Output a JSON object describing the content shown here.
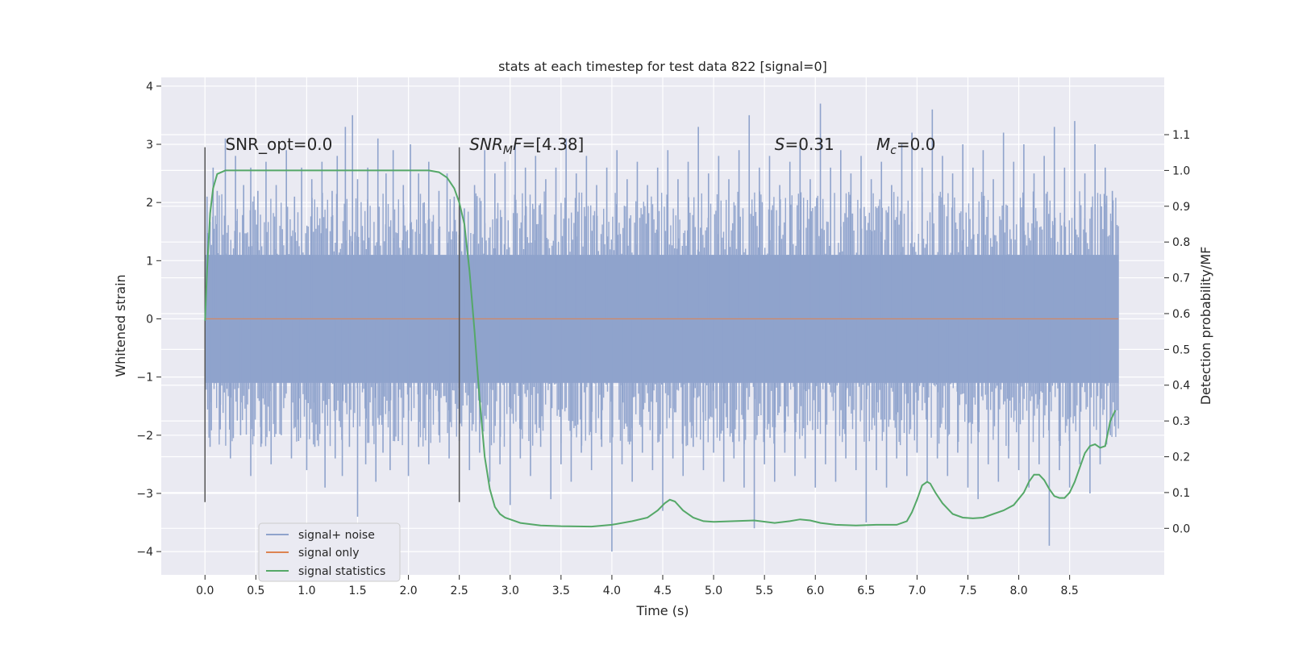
{
  "chart_data": {
    "type": "line",
    "title": "stats at each timestep for test data 822 [signal=0]",
    "xlabel": "Time (s)",
    "ylabel": "Whitened strain",
    "y2label": "Detection probability/MF",
    "xlim": [
      -0.43,
      9.43
    ],
    "ylim": [
      -4.4,
      4.15
    ],
    "y2lim": [
      -0.13,
      1.26
    ],
    "x_ticks": [
      0.0,
      0.5,
      1.0,
      1.5,
      2.0,
      2.5,
      3.0,
      3.5,
      4.0,
      4.5,
      5.0,
      5.5,
      6.0,
      6.5,
      7.0,
      7.5,
      8.0,
      8.5
    ],
    "x_tick_labels": [
      "0.0",
      "0.5",
      "1.0",
      "1.5",
      "2.0",
      "2.5",
      "3.0",
      "3.5",
      "4.0",
      "4.5",
      "5.0",
      "5.5",
      "6.0",
      "6.5",
      "7.0",
      "7.5",
      "8.0",
      "8.5"
    ],
    "y_ticks": [
      -4,
      -3,
      -2,
      -1,
      0,
      1,
      2,
      3,
      4
    ],
    "y_tick_labels": [
      "−4",
      "−3",
      "−2",
      "−1",
      "0",
      "1",
      "2",
      "3",
      "4"
    ],
    "y2_ticks": [
      0.0,
      0.1,
      0.2,
      0.3,
      0.4,
      0.5,
      0.6,
      0.7,
      0.8,
      0.9,
      1.0,
      1.1
    ],
    "y2_tick_labels": [
      "0.0",
      "0.1",
      "0.2",
      "0.3",
      "0.4",
      "0.5",
      "0.6",
      "0.7",
      "0.8",
      "0.9",
      "1.0",
      "1.1"
    ],
    "grid": true,
    "legend_position": "lower-left",
    "vertical_markers": [
      {
        "x": 0.0,
        "y_range": [
          -3.15,
          2.95
        ]
      },
      {
        "x": 2.5,
        "y_range": [
          -3.15,
          2.95
        ]
      }
    ],
    "annotations": [
      {
        "key": "snr_opt",
        "text": "SNR_opt=0.0",
        "x": 0.2,
        "y": 3.0
      },
      {
        "key": "snr_mf",
        "base": "SNR",
        "sub": "M",
        "rest": "F=[4.38]",
        "x": 2.6,
        "y": 3.0
      },
      {
        "key": "s",
        "base": "S",
        "sub": "",
        "rest": "=0.31",
        "x": 5.6,
        "y": 3.0
      },
      {
        "key": "mc",
        "base": "M",
        "sub": "c",
        "rest": "=0.0",
        "x": 6.6,
        "y": 3.0
      }
    ],
    "series": [
      {
        "name": "signal+ noise",
        "color": "#8fa3cc",
        "x_range": [
          0.0,
          8.98
        ],
        "spikes_up": [
          [
            0.02,
            2.1
          ],
          [
            0.08,
            2.6
          ],
          [
            0.12,
            2.2
          ],
          [
            0.2,
            3.1
          ],
          [
            0.3,
            2.8
          ],
          [
            0.38,
            2.3
          ],
          [
            0.45,
            2.6
          ],
          [
            0.52,
            2.2
          ],
          [
            0.6,
            2.7
          ],
          [
            0.7,
            2.3
          ],
          [
            0.8,
            2.9
          ],
          [
            0.88,
            2.1
          ],
          [
            0.95,
            2.6
          ],
          [
            1.05,
            2.4
          ],
          [
            1.15,
            2.7
          ],
          [
            1.25,
            2.2
          ],
          [
            1.3,
            2.8
          ],
          [
            1.38,
            3.3
          ],
          [
            1.45,
            3.5
          ],
          [
            1.5,
            2.4
          ],
          [
            1.6,
            2.6
          ],
          [
            1.7,
            3.1
          ],
          [
            1.78,
            2.5
          ],
          [
            1.85,
            2.9
          ],
          [
            1.95,
            2.3
          ],
          [
            2.02,
            3.0
          ],
          [
            2.1,
            2.5
          ],
          [
            2.2,
            2.7
          ],
          [
            2.3,
            2.2
          ],
          [
            2.38,
            2.5
          ],
          [
            2.45,
            2.1
          ],
          [
            2.55,
            1.9
          ],
          [
            2.65,
            2.3
          ],
          [
            2.75,
            2.9
          ],
          [
            2.85,
            2.5
          ],
          [
            2.95,
            2.7
          ],
          [
            3.05,
            3.0
          ],
          [
            3.15,
            2.6
          ],
          [
            3.25,
            2.8
          ],
          [
            3.35,
            2.4
          ],
          [
            3.45,
            2.6
          ],
          [
            3.55,
            3.1
          ],
          [
            3.65,
            2.5
          ],
          [
            3.75,
            2.8
          ],
          [
            3.85,
            2.3
          ],
          [
            3.95,
            2.6
          ],
          [
            4.05,
            2.9
          ],
          [
            4.15,
            2.4
          ],
          [
            4.25,
            2.7
          ],
          [
            4.35,
            2.3
          ],
          [
            4.45,
            2.6
          ],
          [
            4.55,
            2.9
          ],
          [
            4.65,
            2.4
          ],
          [
            4.75,
            2.7
          ],
          [
            4.85,
            3.3
          ],
          [
            4.95,
            2.5
          ],
          [
            5.05,
            2.8
          ],
          [
            5.15,
            2.4
          ],
          [
            5.25,
            2.9
          ],
          [
            5.35,
            3.5
          ],
          [
            5.45,
            2.6
          ],
          [
            5.55,
            2.8
          ],
          [
            5.65,
            2.3
          ],
          [
            5.75,
            2.7
          ],
          [
            5.85,
            3.0
          ],
          [
            5.95,
            2.4
          ],
          [
            6.05,
            3.7
          ],
          [
            6.15,
            2.6
          ],
          [
            6.25,
            2.9
          ],
          [
            6.35,
            2.5
          ],
          [
            6.45,
            2.8
          ],
          [
            6.55,
            2.4
          ],
          [
            6.65,
            2.7
          ],
          [
            6.75,
            2.3
          ],
          [
            6.85,
            3.0
          ],
          [
            6.95,
            3.2
          ],
          [
            7.05,
            2.6
          ],
          [
            7.15,
            3.6
          ],
          [
            7.25,
            2.8
          ],
          [
            7.35,
            2.5
          ],
          [
            7.45,
            3.0
          ],
          [
            7.55,
            2.6
          ],
          [
            7.65,
            2.9
          ],
          [
            7.75,
            2.4
          ],
          [
            7.85,
            3.2
          ],
          [
            7.95,
            2.7
          ],
          [
            8.05,
            3.0
          ],
          [
            8.15,
            2.5
          ],
          [
            8.25,
            2.8
          ],
          [
            8.35,
            3.3
          ],
          [
            8.45,
            2.6
          ],
          [
            8.55,
            3.4
          ],
          [
            8.65,
            2.5
          ],
          [
            8.75,
            3.0
          ],
          [
            8.85,
            2.6
          ],
          [
            8.92,
            2.2
          ]
        ],
        "spikes_down": [
          [
            0.05,
            -2.2
          ],
          [
            0.15,
            -1.9
          ],
          [
            0.25,
            -2.4
          ],
          [
            0.35,
            -2.0
          ],
          [
            0.45,
            -2.7
          ],
          [
            0.55,
            -2.2
          ],
          [
            0.65,
            -2.5
          ],
          [
            0.75,
            -2.0
          ],
          [
            0.85,
            -2.4
          ],
          [
            0.92,
            -2.1
          ],
          [
            1.0,
            -2.6
          ],
          [
            1.08,
            -2.2
          ],
          [
            1.18,
            -2.9
          ],
          [
            1.28,
            -2.4
          ],
          [
            1.35,
            -2.7
          ],
          [
            1.42,
            -2.2
          ],
          [
            1.5,
            -3.4
          ],
          [
            1.58,
            -2.5
          ],
          [
            1.68,
            -2.8
          ],
          [
            1.75,
            -2.3
          ],
          [
            1.82,
            -2.6
          ],
          [
            1.9,
            -2.1
          ],
          [
            2.0,
            -2.7
          ],
          [
            2.1,
            -2.2
          ],
          [
            2.2,
            -2.5
          ],
          [
            2.3,
            -2.0
          ],
          [
            2.4,
            -2.4
          ],
          [
            2.5,
            -2.1
          ],
          [
            2.6,
            -2.6
          ],
          [
            2.7,
            -2.3
          ],
          [
            2.8,
            -2.8
          ],
          [
            2.9,
            -2.5
          ],
          [
            3.0,
            -3.2
          ],
          [
            3.1,
            -2.4
          ],
          [
            3.2,
            -2.7
          ],
          [
            3.3,
            -2.2
          ],
          [
            3.4,
            -3.1
          ],
          [
            3.5,
            -2.5
          ],
          [
            3.6,
            -2.8
          ],
          [
            3.7,
            -2.3
          ],
          [
            3.8,
            -2.6
          ],
          [
            3.9,
            -2.2
          ],
          [
            4.0,
            -4.0
          ],
          [
            4.1,
            -2.5
          ],
          [
            4.2,
            -2.8
          ],
          [
            4.3,
            -2.3
          ],
          [
            4.4,
            -2.6
          ],
          [
            4.5,
            -3.3
          ],
          [
            4.6,
            -2.4
          ],
          [
            4.7,
            -2.7
          ],
          [
            4.8,
            -2.2
          ],
          [
            4.9,
            -2.6
          ],
          [
            5.0,
            -2.3
          ],
          [
            5.1,
            -2.8
          ],
          [
            5.2,
            -2.4
          ],
          [
            5.3,
            -2.9
          ],
          [
            5.4,
            -3.6
          ],
          [
            5.5,
            -2.5
          ],
          [
            5.6,
            -2.8
          ],
          [
            5.7,
            -2.3
          ],
          [
            5.8,
            -2.7
          ],
          [
            5.9,
            -2.4
          ],
          [
            6.0,
            -2.9
          ],
          [
            6.1,
            -2.5
          ],
          [
            6.2,
            -2.8
          ],
          [
            6.3,
            -2.4
          ],
          [
            6.4,
            -2.6
          ],
          [
            6.5,
            -3.5
          ],
          [
            6.6,
            -2.6
          ],
          [
            6.7,
            -2.9
          ],
          [
            6.8,
            -2.4
          ],
          [
            6.9,
            -2.7
          ],
          [
            7.0,
            -2.3
          ],
          [
            7.1,
            -2.8
          ],
          [
            7.2,
            -2.4
          ],
          [
            7.3,
            -2.7
          ],
          [
            7.4,
            -2.3
          ],
          [
            7.5,
            -2.9
          ],
          [
            7.6,
            -3.1
          ],
          [
            7.7,
            -2.5
          ],
          [
            7.8,
            -2.8
          ],
          [
            7.9,
            -2.4
          ],
          [
            8.0,
            -2.6
          ],
          [
            8.1,
            -2.9
          ],
          [
            8.2,
            -2.5
          ],
          [
            8.3,
            -3.9
          ],
          [
            8.4,
            -2.6
          ],
          [
            8.5,
            -2.9
          ],
          [
            8.6,
            -2.5
          ],
          [
            8.7,
            -3.0
          ],
          [
            8.8,
            -2.5
          ],
          [
            8.9,
            -2.0
          ]
        ]
      },
      {
        "name": "signal only",
        "color": "#dd8452",
        "x": [
          0.0,
          8.98
        ],
        "y": [
          0.0,
          0.0
        ]
      },
      {
        "name": "signal statistics",
        "color": "#55a868",
        "axis": "right",
        "x": [
          0.0,
          0.02,
          0.05,
          0.08,
          0.12,
          0.2,
          0.4,
          1.0,
          2.0,
          2.2,
          2.3,
          2.38,
          2.45,
          2.5,
          2.55,
          2.6,
          2.65,
          2.7,
          2.75,
          2.8,
          2.85,
          2.9,
          2.95,
          3.0,
          3.1,
          3.3,
          3.5,
          3.8,
          4.0,
          4.2,
          4.35,
          4.45,
          4.52,
          4.57,
          4.62,
          4.7,
          4.8,
          4.9,
          5.0,
          5.2,
          5.4,
          5.6,
          5.75,
          5.85,
          5.95,
          6.05,
          6.2,
          6.4,
          6.6,
          6.8,
          6.9,
          6.95,
          7.0,
          7.05,
          7.1,
          7.13,
          7.18,
          7.25,
          7.35,
          7.45,
          7.55,
          7.65,
          7.75,
          7.85,
          7.95,
          8.05,
          8.1,
          8.15,
          8.2,
          8.25,
          8.3,
          8.35,
          8.4,
          8.45,
          8.5,
          8.55,
          8.6,
          8.65,
          8.7,
          8.75,
          8.8,
          8.85,
          8.9,
          8.95
        ],
        "y": [
          0.58,
          0.72,
          0.88,
          0.95,
          0.99,
          1.0,
          1.0,
          1.0,
          1.0,
          1.0,
          0.995,
          0.98,
          0.95,
          0.91,
          0.85,
          0.72,
          0.55,
          0.36,
          0.2,
          0.11,
          0.06,
          0.04,
          0.03,
          0.025,
          0.015,
          0.008,
          0.006,
          0.005,
          0.01,
          0.02,
          0.03,
          0.05,
          0.07,
          0.08,
          0.075,
          0.05,
          0.03,
          0.02,
          0.018,
          0.02,
          0.022,
          0.015,
          0.02,
          0.025,
          0.022,
          0.015,
          0.01,
          0.008,
          0.01,
          0.01,
          0.02,
          0.045,
          0.08,
          0.12,
          0.13,
          0.125,
          0.1,
          0.07,
          0.04,
          0.03,
          0.028,
          0.03,
          0.04,
          0.05,
          0.065,
          0.1,
          0.13,
          0.15,
          0.15,
          0.135,
          0.11,
          0.09,
          0.085,
          0.085,
          0.1,
          0.13,
          0.17,
          0.21,
          0.23,
          0.235,
          0.225,
          0.23,
          0.3,
          0.33
        ]
      }
    ]
  }
}
